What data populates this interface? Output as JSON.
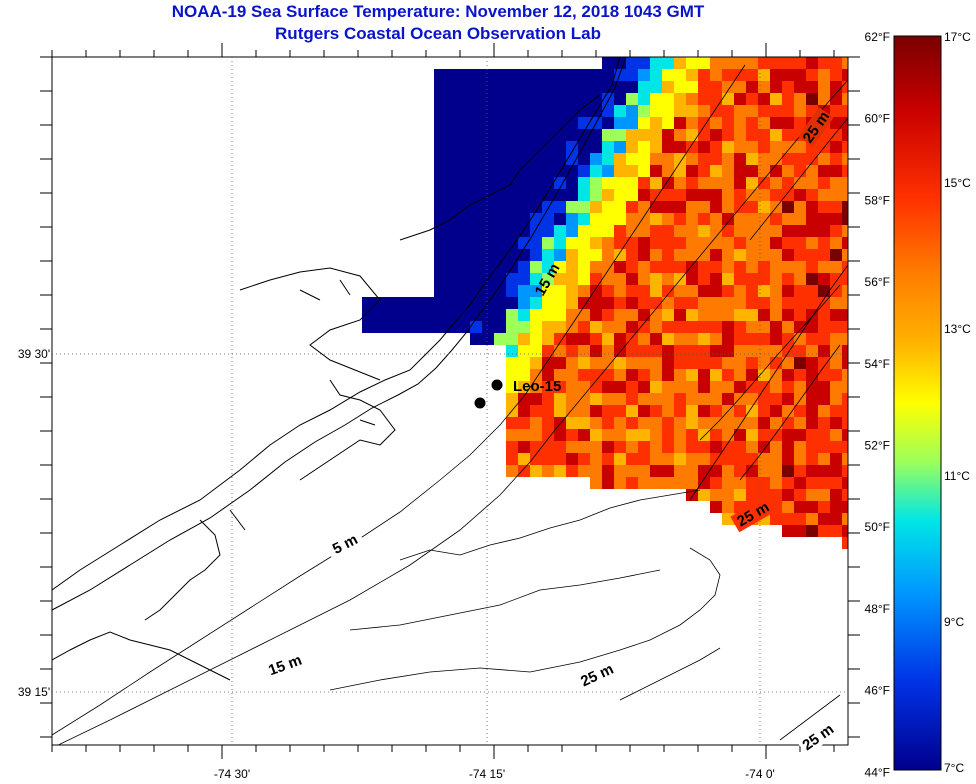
{
  "title": "NOAA-19 Sea Surface Temperature:  November 12, 2018 1043 GMT",
  "subtitle": "Rutgers Coastal Ocean Observation Lab",
  "colorbar": {
    "fahrenheit_labels": [
      "62°F",
      "60°F",
      "58°F",
      "56°F",
      "54°F",
      "52°F",
      "50°F",
      "48°F",
      "46°F",
      "44°F"
    ],
    "celsius_labels": [
      "17°C",
      "15°C",
      "13°C",
      "11°C",
      "9°C",
      "7°C"
    ],
    "colors": [
      "#7a0000",
      "#c80000",
      "#ff3000",
      "#ff7a00",
      "#ffb400",
      "#ffff00",
      "#9cff5a",
      "#00e6e6",
      "#0096ff",
      "#0032e6",
      "#00008c"
    ]
  },
  "axes": {
    "lon_labels": [
      "-74 30'",
      "-74 15'",
      "-74 0'"
    ],
    "lat_labels": [
      "39 30'",
      "39 15'"
    ]
  },
  "contour_labels": [
    "25 m",
    "15 m",
    "5 m",
    "15 m",
    "25 m",
    "25 m",
    "25 m"
  ],
  "site": {
    "name": "Leo-15"
  }
}
